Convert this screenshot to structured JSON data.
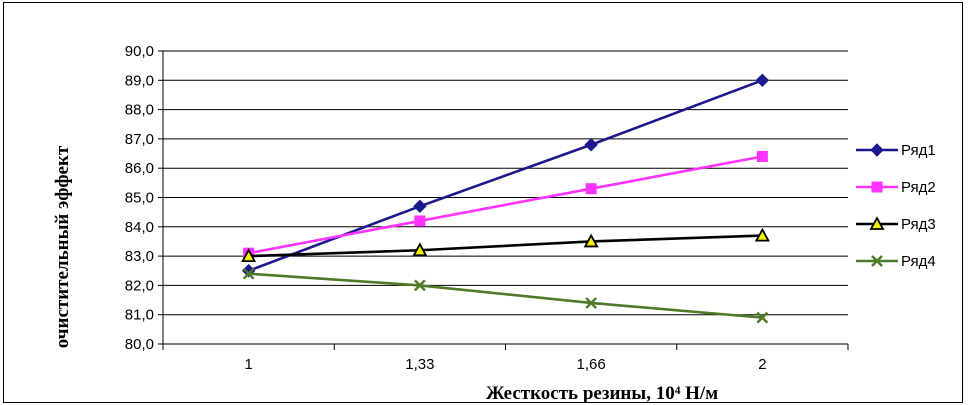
{
  "chart_data": {
    "type": "line",
    "title": "",
    "categories": [
      "1",
      "1,33",
      "1,66",
      "2"
    ],
    "xlabel": "Жесткость резины, 10⁴ Н/м",
    "ylabel": "очистительный эффект",
    "ylim": [
      80.0,
      90.0
    ],
    "yticks": [
      "80,0",
      "81,0",
      "82,0",
      "83,0",
      "84,0",
      "85,0",
      "86,0",
      "87,0",
      "88,0",
      "89,0",
      "90,0"
    ],
    "grid": "horizontal",
    "legend_position": "right",
    "series": [
      {
        "name": "Ряд1",
        "values": [
          82.5,
          84.7,
          86.8,
          89.0
        ],
        "color": "#1a1a8c",
        "marker": "diamond"
      },
      {
        "name": "Ряд2",
        "values": [
          83.1,
          84.2,
          85.3,
          86.4
        ],
        "color": "#ff33ff",
        "marker": "square"
      },
      {
        "name": "Ряд3",
        "values": [
          83.0,
          83.2,
          83.5,
          83.7
        ],
        "color": "#000000",
        "marker": "triangle"
      },
      {
        "name": "Ряд4",
        "values": [
          82.4,
          82.0,
          81.4,
          80.9
        ],
        "color": "#4f7a28",
        "marker": "x"
      }
    ]
  }
}
